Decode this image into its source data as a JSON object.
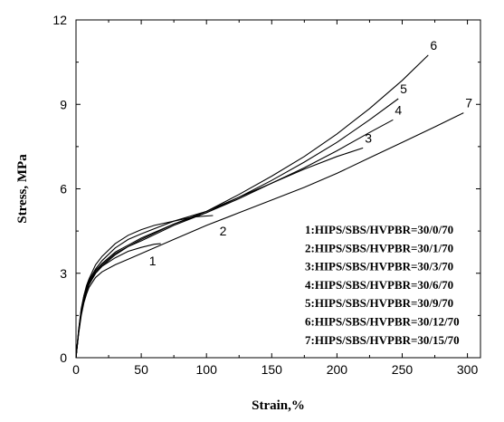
{
  "chart_data": {
    "type": "line",
    "xlabel": "Strain,%",
    "ylabel": "Stress, MPa",
    "xlim": [
      0,
      310
    ],
    "ylim": [
      0,
      12
    ],
    "xticks": [
      0,
      50,
      100,
      150,
      200,
      250,
      300
    ],
    "yticks": [
      0,
      3,
      6,
      9,
      12
    ],
    "xtick_labels": [
      "0",
      "50",
      "100",
      "150",
      "200",
      "250",
      "300"
    ],
    "ytick_labels": [
      "0",
      "3",
      "6",
      "9",
      "12"
    ],
    "grid": false,
    "legend_position": "lower-right",
    "series": [
      {
        "name": "1:HIPS/SBS/HVPBR=30/0/70",
        "curve_label": "1",
        "x": [
          0,
          2,
          4,
          6,
          8,
          10,
          15,
          20,
          30,
          40,
          50,
          60,
          65
        ],
        "y": [
          0,
          0.9,
          1.6,
          2.05,
          2.35,
          2.6,
          3.0,
          3.25,
          3.55,
          3.78,
          3.92,
          4.03,
          4.05
        ]
      },
      {
        "name": "2:HIPS/SBS/HVPBR=30/1/70",
        "curve_label": "2",
        "x": [
          0,
          2,
          4,
          6,
          8,
          10,
          15,
          20,
          30,
          40,
          50,
          75,
          100,
          125,
          150,
          175,
          200,
          225,
          250,
          275,
          297
        ],
        "y": [
          0,
          0.85,
          1.5,
          1.95,
          2.25,
          2.5,
          2.85,
          3.05,
          3.3,
          3.5,
          3.7,
          4.2,
          4.7,
          5.15,
          5.6,
          6.05,
          6.55,
          7.1,
          7.65,
          8.2,
          8.7
        ]
      },
      {
        "name": "3:HIPS/SBS/HVPBR=30/3/70",
        "curve_label": "3",
        "x": [
          0,
          2,
          4,
          6,
          8,
          10,
          15,
          20,
          30,
          40,
          50,
          75,
          100,
          125,
          150,
          175,
          200,
          220
        ],
        "y": [
          0,
          0.9,
          1.6,
          2.05,
          2.35,
          2.6,
          3.0,
          3.25,
          3.65,
          3.95,
          4.2,
          4.75,
          5.2,
          5.7,
          6.2,
          6.7,
          7.15,
          7.45
        ]
      },
      {
        "name": "4:HIPS/SBS/HVPBR=30/6/70",
        "curve_label": "4",
        "x": [
          0,
          2,
          4,
          6,
          8,
          10,
          15,
          20,
          30,
          40,
          50,
          75,
          100,
          125,
          150,
          175,
          200,
          225,
          243
        ],
        "y": [
          0,
          0.9,
          1.6,
          2.1,
          2.4,
          2.65,
          3.05,
          3.3,
          3.7,
          3.95,
          4.15,
          4.7,
          5.15,
          5.65,
          6.2,
          6.75,
          7.35,
          8.0,
          8.45
        ]
      },
      {
        "name": "5:HIPS/SBS/HVPBR=30/9/70",
        "curve_label": "5",
        "x": [
          0,
          2,
          4,
          6,
          8,
          10,
          15,
          20,
          30,
          40,
          50,
          75,
          100,
          125,
          150,
          175,
          200,
          225,
          247
        ],
        "y": [
          0,
          0.95,
          1.7,
          2.15,
          2.45,
          2.7,
          3.1,
          3.35,
          3.75,
          4.0,
          4.25,
          4.75,
          5.15,
          5.7,
          6.3,
          6.95,
          7.65,
          8.45,
          9.2
        ]
      },
      {
        "name": "6:HIPS/SBS/HVPBR=30/12/70",
        "curve_label": "6",
        "x": [
          0,
          2,
          4,
          6,
          8,
          10,
          15,
          20,
          30,
          40,
          50,
          75,
          100,
          125,
          150,
          175,
          200,
          225,
          250,
          270
        ],
        "y": [
          0,
          1.0,
          1.75,
          2.2,
          2.5,
          2.75,
          3.15,
          3.45,
          3.9,
          4.2,
          4.4,
          4.85,
          5.2,
          5.8,
          6.45,
          7.15,
          7.95,
          8.85,
          9.85,
          10.75
        ]
      },
      {
        "name": "7:HIPS/SBS/HVPBR=30/15/70",
        "curve_label": "7",
        "x": [
          0,
          2,
          4,
          6,
          8,
          10,
          15,
          20,
          30,
          40,
          50,
          60,
          75,
          90,
          105
        ],
        "y": [
          0,
          0.95,
          1.7,
          2.2,
          2.55,
          2.8,
          3.3,
          3.6,
          4.05,
          4.35,
          4.55,
          4.7,
          4.85,
          5.0,
          5.05
        ]
      }
    ]
  }
}
